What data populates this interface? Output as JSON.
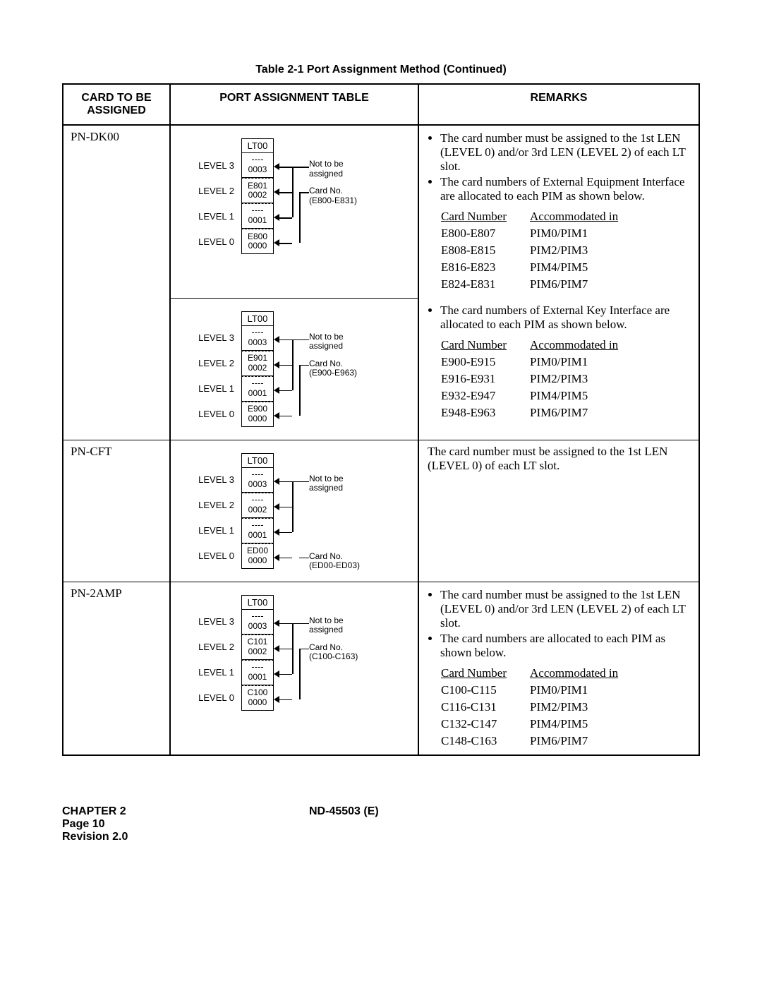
{
  "caption": "Table 2-1  Port Assignment Method (Continued)",
  "headers": {
    "card": "CARD TO BE ASSIGNED",
    "port": "PORT ASSIGNMENT TABLE",
    "remarks": "REMARKS"
  },
  "labels": {
    "lt": "LT00",
    "level3": "LEVEL 3",
    "level2": "LEVEL 2",
    "level1": "LEVEL 1",
    "level0": "LEVEL 0",
    "not_to_be": "Not to be",
    "assigned": "assigned",
    "card_no": "Card No.",
    "card_number": "Card Number",
    "accommodated": "Accommodated in"
  },
  "rows": [
    {
      "card": "PN-DK00",
      "diagrams": [
        {
          "range_label": "(E800-E831)",
          "levels": [
            {
              "top": "—",
              "bot": "0003"
            },
            {
              "top": "E801",
              "bot": "0002"
            },
            {
              "top": "—",
              "bot": "0001"
            },
            {
              "top": "E800",
              "bot": "0000"
            }
          ],
          "card_notes_at": "L2",
          "arrows_to": [
            "L3",
            "L2",
            "L1",
            "L0"
          ],
          "not_assigned_targets": [
            "L3",
            "L1"
          ],
          "card_targets": [
            "L2",
            "L0"
          ]
        },
        {
          "range_label": "(E900-E963)",
          "levels": [
            {
              "top": "—",
              "bot": "0003"
            },
            {
              "top": "E901",
              "bot": "0002"
            },
            {
              "top": "—",
              "bot": "0001"
            },
            {
              "top": "E900",
              "bot": "0000"
            }
          ],
          "card_notes_at": "L2",
          "arrows_to": [
            "L3",
            "L2",
            "L1",
            "L0"
          ],
          "not_assigned_targets": [
            "L3",
            "L1"
          ],
          "card_targets": [
            "L2",
            "L0"
          ]
        }
      ],
      "remarks_blocks": [
        {
          "bullets": [
            "The card number must be assigned to the 1st LEN (LEVEL 0) and/or 3rd LEN (LEVEL 2) of each LT slot.",
            "The card numbers of External Equipment Interface are allocated to each PIM as shown below."
          ],
          "map": [
            [
              "E800-E807",
              "PIM0/PIM1"
            ],
            [
              "E808-E815",
              "PIM2/PIM3"
            ],
            [
              "E816-E823",
              "PIM4/PIM5"
            ],
            [
              "E824-E831",
              "PIM6/PIM7"
            ]
          ]
        },
        {
          "bullets": [
            "The card numbers of External Key Interface are allocated to each PIM as shown below."
          ],
          "map": [
            [
              "E900-E915",
              "PIM0/PIM1"
            ],
            [
              "E916-E931",
              "PIM2/PIM3"
            ],
            [
              "E932-E947",
              "PIM4/PIM5"
            ],
            [
              "E948-E963",
              "PIM6/PIM7"
            ]
          ]
        }
      ]
    },
    {
      "card": "PN-CFT",
      "diagrams": [
        {
          "range_label": "(ED00-ED03)",
          "levels": [
            {
              "top": "—",
              "bot": "0003"
            },
            {
              "top": "—",
              "bot": "0002"
            },
            {
              "top": "—",
              "bot": "0001"
            },
            {
              "top": "ED00",
              "bot": "0000"
            }
          ],
          "card_notes_at": "L0",
          "arrows_to": [
            "L3",
            "L2",
            "L1",
            "L0"
          ],
          "not_assigned_targets": [
            "L3",
            "L2",
            "L1"
          ],
          "card_targets": [
            "L0"
          ]
        }
      ],
      "remarks_blocks": [
        {
          "plain": "The card number must be assigned to the 1st LEN (LEVEL 0) of each LT slot."
        }
      ]
    },
    {
      "card": "PN-2AMP",
      "diagrams": [
        {
          "range_label": "(C100-C163)",
          "levels": [
            {
              "top": "—",
              "bot": "0003"
            },
            {
              "top": "C101",
              "bot": "0002"
            },
            {
              "top": "—",
              "bot": "0001"
            },
            {
              "top": "C100",
              "bot": "0000"
            }
          ],
          "card_notes_at": "L2",
          "arrows_to": [
            "L3",
            "L2",
            "L1",
            "L0"
          ],
          "not_assigned_targets": [
            "L3",
            "L1"
          ],
          "card_targets": [
            "L2",
            "L0"
          ]
        }
      ],
      "remarks_blocks": [
        {
          "bullets": [
            "The card number must be assigned to the 1st LEN (LEVEL 0) and/or 3rd LEN (LEVEL 2) of each LT slot.",
            "The card numbers are allocated to each PIM as shown below."
          ],
          "map": [
            [
              "C100-C115",
              "PIM0/PIM1"
            ],
            [
              "C116-C131",
              "PIM2/PIM3"
            ],
            [
              "C132-C147",
              "PIM4/PIM5"
            ],
            [
              "C148-C163",
              "PIM6/PIM7"
            ]
          ]
        }
      ]
    }
  ],
  "footer": {
    "chapter": "CHAPTER 2",
    "page": "Page 10",
    "rev": "Revision 2.0",
    "doc": "ND-45503 (E)"
  }
}
